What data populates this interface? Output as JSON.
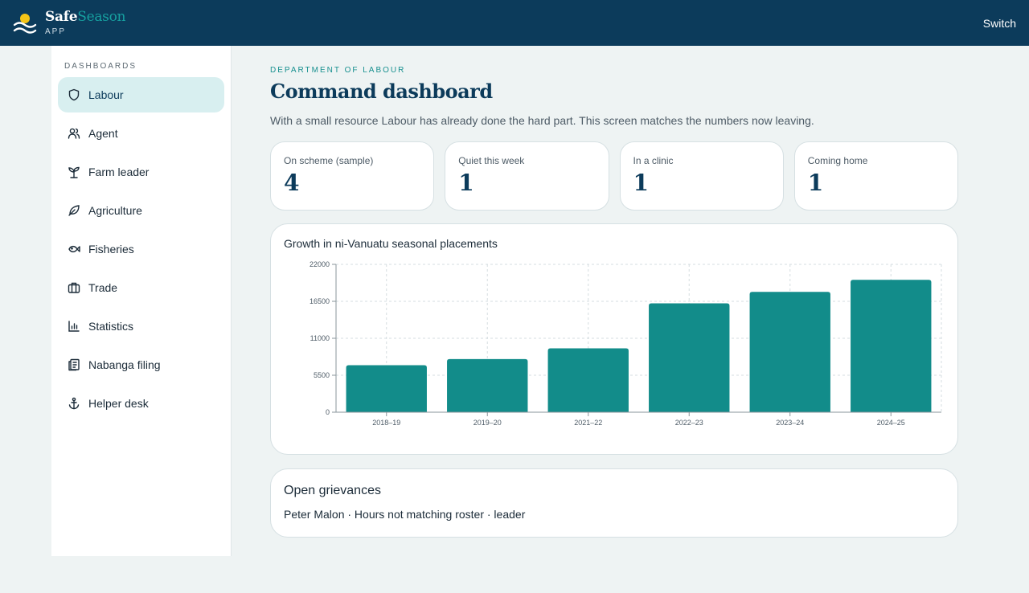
{
  "brand": {
    "name_part1": "Safe",
    "name_part2": "Season",
    "sub": "APP"
  },
  "header": {
    "switch_label": "Switch"
  },
  "sidebar": {
    "heading": "DASHBOARDS",
    "items": [
      {
        "label": "Labour",
        "icon": "shield-icon",
        "active": true
      },
      {
        "label": "Agent",
        "icon": "users-icon",
        "active": false
      },
      {
        "label": "Farm leader",
        "icon": "sprout-icon",
        "active": false
      },
      {
        "label": "Agriculture",
        "icon": "leaf-icon",
        "active": false
      },
      {
        "label": "Fisheries",
        "icon": "fish-icon",
        "active": false
      },
      {
        "label": "Trade",
        "icon": "briefcase-icon",
        "active": false
      },
      {
        "label": "Statistics",
        "icon": "bar-chart-icon",
        "active": false
      },
      {
        "label": "Nabanga filing",
        "icon": "filing-icon",
        "active": false
      },
      {
        "label": "Helper desk",
        "icon": "anchor-icon",
        "active": false
      }
    ]
  },
  "main": {
    "department": "DEPARTMENT OF LABOUR",
    "title": "Command dashboard",
    "intro": "With a small resource Labour has already done the hard part. This screen matches the numbers now leaving.",
    "stats": [
      {
        "label": "On scheme (sample)",
        "value": "4"
      },
      {
        "label": "Quiet this week",
        "value": "1"
      },
      {
        "label": "In a clinic",
        "value": "1"
      },
      {
        "label": "Coming home",
        "value": "1"
      }
    ],
    "chart_title": "Growth in ni-Vanuatu seasonal placements",
    "grievances": {
      "title": "Open grievances",
      "items": [
        "Peter Malon · Hours not matching roster · leader"
      ]
    }
  },
  "colors": {
    "header_bg": "#0c3b5b",
    "accent": "#128c8a",
    "active_bg": "#d8eff0"
  },
  "chart_data": {
    "type": "bar",
    "title": "Growth in ni-Vanuatu seasonal placements",
    "categories": [
      "2018–19",
      "2019–20",
      "2021–22",
      "2022–23",
      "2023–24",
      "2024–25"
    ],
    "values": [
      7000,
      7900,
      9500,
      16200,
      17900,
      19700
    ],
    "ylim": [
      0,
      22000
    ],
    "yticks": [
      "0",
      "5500",
      "11000",
      "16500",
      "22000"
    ],
    "xlabel": "",
    "ylabel": "",
    "grid": true,
    "color": "#128c8a"
  }
}
